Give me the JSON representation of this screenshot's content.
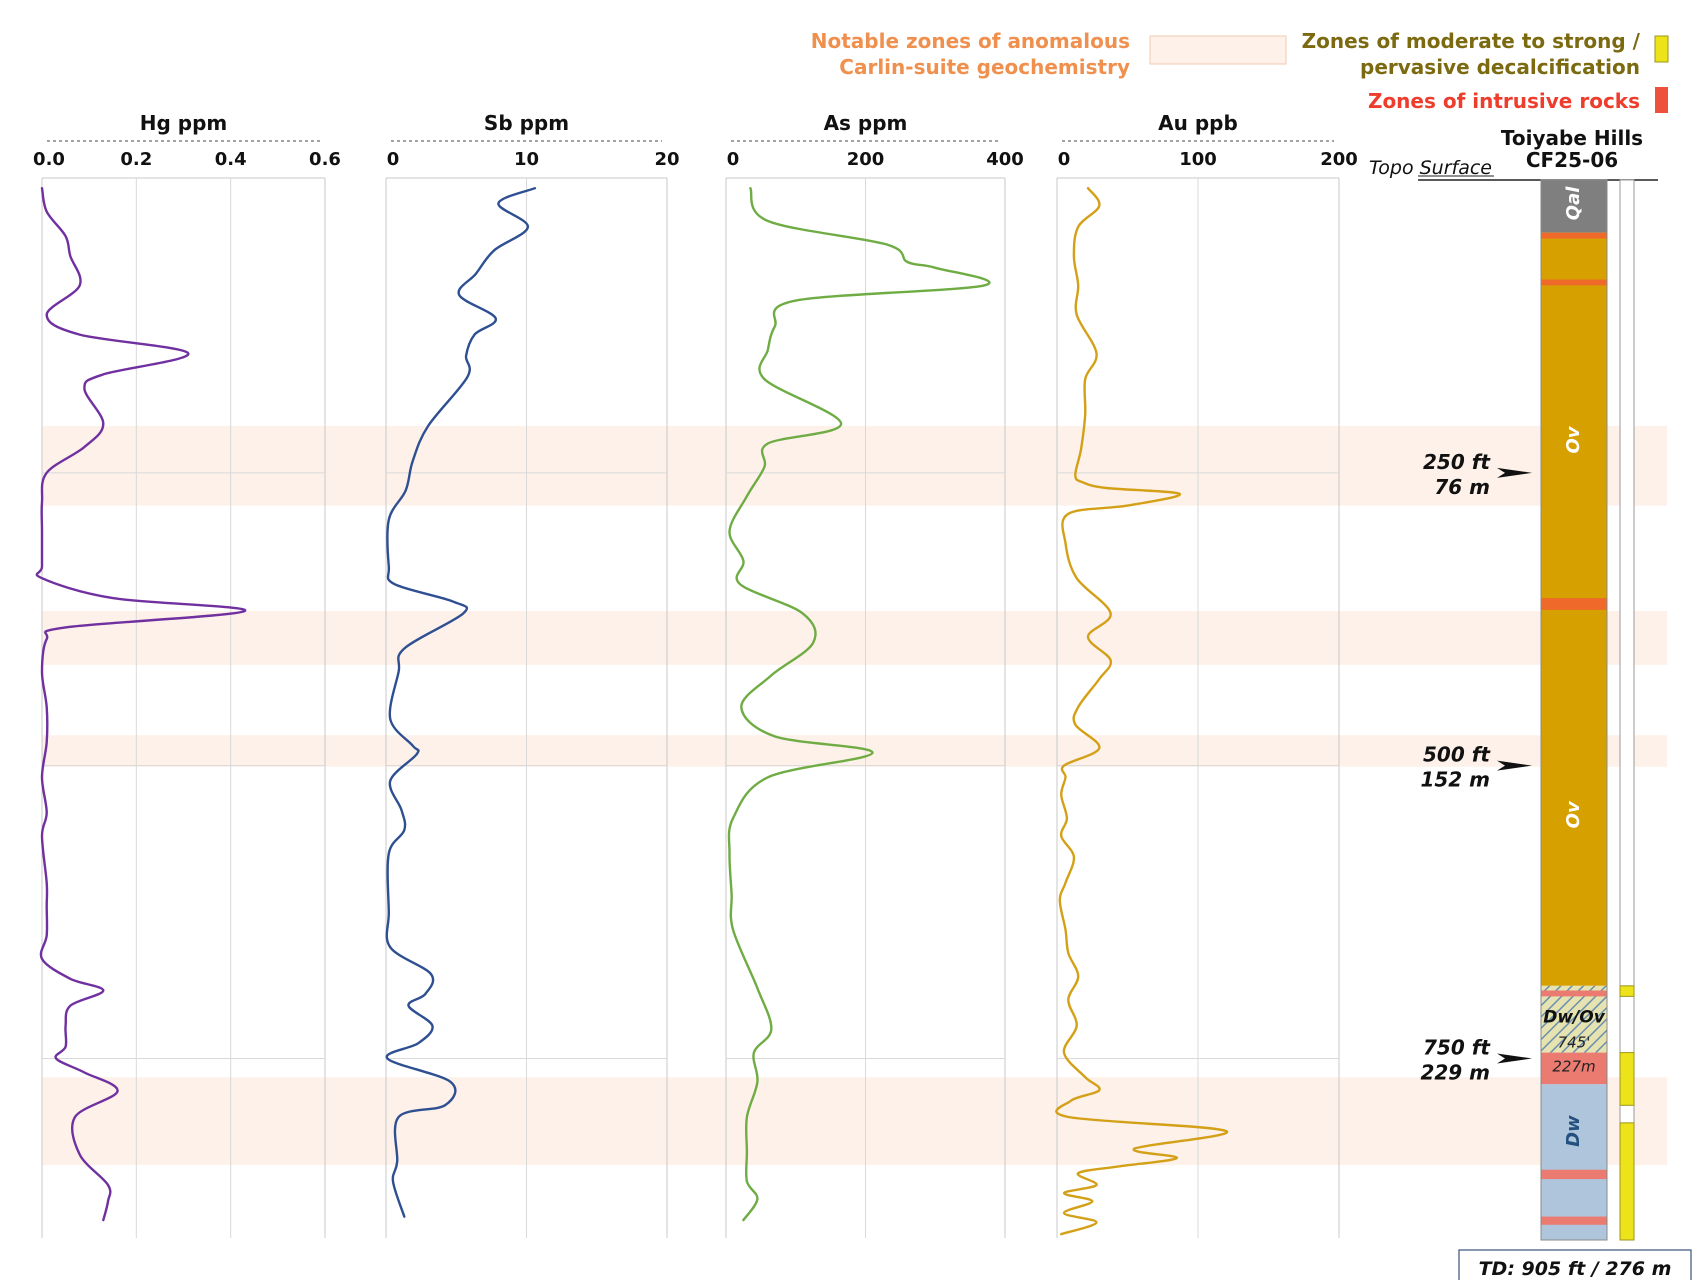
{
  "legend": {
    "anomalous_line1": "Notable zones of anomalous",
    "anomalous_line2": "Carlin-suite geochemistry",
    "anomalous_color": "#fdf1ea",
    "anomalous_text_color": "#f0904f",
    "decalc_line1": "Zones of moderate to strong /",
    "decalc_line2": "pervasive decalcification",
    "decalc_color": "#ece31a",
    "decalc_text_color": "#7b6a10",
    "intrusive_label": "Zones of intrusive rocks",
    "intrusive_color": "#ef4f3d",
    "intrusive_text_color": "#ee3c2d"
  },
  "column": {
    "title_line1": "Toiyabe Hills",
    "title_line2": "CF25-06",
    "topo_label": "Topo Surface",
    "td_label": "TD: 905 ft / 276 m",
    "contact_line1": "745'",
    "contact_line2": "227m",
    "units": [
      {
        "label": "Qal",
        "top_ft": 0,
        "bottom_ft": 45,
        "color": "#7f7f7f",
        "text_color": "#ffffff"
      },
      {
        "label": "Ov",
        "top_ft": 45,
        "bottom_ft": 688,
        "color": "#d6a100",
        "text_color": "#ffffff"
      },
      {
        "label": "Dw/Ov",
        "top_ft": 688,
        "bottom_ft": 745,
        "color": "#c7c79a",
        "text_color": "#111111"
      },
      {
        "label": "",
        "top_ft": 745,
        "bottom_ft": 772,
        "color": "#eb7a70",
        "text_color": "#111111"
      },
      {
        "label": "Dw",
        "top_ft": 772,
        "bottom_ft": 905,
        "color": "#aec5dc",
        "text_color": "#23507f"
      }
    ],
    "unit_label_positions_ft": [
      {
        "label": "Qal",
        "depth_ft": 20
      },
      {
        "label": "Ov",
        "depth_ft": 222
      },
      {
        "label": "Ov",
        "depth_ft": 542
      },
      {
        "label": "Dw/Ov",
        "depth_ft": 714
      },
      {
        "label": "Dw",
        "depth_ft": 812
      }
    ],
    "intrusive_bands_ft": [
      [
        45,
        50
      ],
      [
        85,
        90
      ],
      [
        357,
        367
      ],
      [
        692,
        697
      ],
      [
        845,
        853
      ],
      [
        885,
        892
      ]
    ],
    "decalc_intervals_ft": [
      [
        688,
        697
      ],
      [
        745,
        790
      ],
      [
        805,
        905
      ]
    ]
  },
  "depth_markers": [
    {
      "depth_ft": 250,
      "ft_label": "250 ft",
      "m_label": "76 m"
    },
    {
      "depth_ft": 500,
      "ft_label": "500 ft",
      "m_label": "152 m"
    },
    {
      "depth_ft": 750,
      "ft_label": "750 ft",
      "m_label": "229 m"
    }
  ],
  "chart_data": {
    "type": "line",
    "y_axis": {
      "quantity": "depth",
      "unit": "ft",
      "range": [
        0,
        905
      ],
      "gridlines": [
        250,
        500,
        750
      ]
    },
    "anomalous_zones_ft": [
      [
        210,
        278
      ],
      [
        368,
        414
      ],
      [
        474,
        501
      ],
      [
        766,
        841
      ]
    ],
    "panels": [
      {
        "title": "Hg ppm",
        "xlim": [
          0,
          0.6
        ],
        "ticks": [
          0,
          0.2,
          0.4,
          0.6
        ],
        "tick_labels": [
          "0.0",
          "0.2",
          "0.4",
          "0.6"
        ],
        "gridlines": [
          0.2,
          0.4
        ],
        "color": "#7030a0",
        "points": [
          [
            0.0,
            7
          ],
          [
            0.01,
            27
          ],
          [
            0.05,
            48
          ],
          [
            0.06,
            65
          ],
          [
            0.08,
            90
          ],
          [
            0.01,
            115
          ],
          [
            0.08,
            132
          ],
          [
            0.31,
            148
          ],
          [
            0.13,
            166
          ],
          [
            0.09,
            178
          ],
          [
            0.13,
            208
          ],
          [
            0.09,
            228
          ],
          [
            0.01,
            250
          ],
          [
            0.0,
            275
          ],
          [
            0.0,
            300
          ],
          [
            0.0,
            330
          ],
          [
            0.0,
            340
          ],
          [
            0.15,
            357
          ],
          [
            0.43,
            368
          ],
          [
            0.05,
            382
          ],
          [
            0.01,
            392
          ],
          [
            0.0,
            420
          ],
          [
            0.01,
            450
          ],
          [
            0.01,
            480
          ],
          [
            0.0,
            510
          ],
          [
            0.01,
            540
          ],
          [
            0.0,
            560
          ],
          [
            0.01,
            600
          ],
          [
            0.01,
            620
          ],
          [
            0.01,
            645
          ],
          [
            0.0,
            665
          ],
          [
            0.06,
            682
          ],
          [
            0.13,
            692
          ],
          [
            0.06,
            705
          ],
          [
            0.05,
            722
          ],
          [
            0.05,
            740
          ],
          [
            0.03,
            750
          ],
          [
            0.09,
            762
          ],
          [
            0.16,
            778
          ],
          [
            0.07,
            800
          ],
          [
            0.08,
            832
          ],
          [
            0.14,
            858
          ],
          [
            0.14,
            872
          ],
          [
            0.13,
            888
          ]
        ]
      },
      {
        "title": "Sb ppm",
        "xlim": [
          0,
          20
        ],
        "ticks": [
          0,
          10,
          20
        ],
        "tick_labels": [
          "0",
          "10",
          "20"
        ],
        "gridlines": [
          10
        ],
        "color": "#2e4f91",
        "points": [
          [
            10.6,
            7
          ],
          [
            8.0,
            20
          ],
          [
            10.1,
            40
          ],
          [
            7.7,
            60
          ],
          [
            6.4,
            80
          ],
          [
            5.2,
            98
          ],
          [
            7.8,
            118
          ],
          [
            6.3,
            132
          ],
          [
            5.7,
            150
          ],
          [
            5.8,
            168
          ],
          [
            3.0,
            210
          ],
          [
            1.9,
            240
          ],
          [
            1.4,
            265
          ],
          [
            0.2,
            290
          ],
          [
            0.2,
            330
          ],
          [
            0.6,
            345
          ],
          [
            4.8,
            360
          ],
          [
            5.5,
            370
          ],
          [
            1.3,
            400
          ],
          [
            0.9,
            420
          ],
          [
            0.3,
            460
          ],
          [
            1.9,
            483
          ],
          [
            2.2,
            490
          ],
          [
            0.3,
            513
          ],
          [
            1.1,
            538
          ],
          [
            1.3,
            555
          ],
          [
            0.2,
            575
          ],
          [
            0.2,
            625
          ],
          [
            0.3,
            655
          ],
          [
            3.2,
            678
          ],
          [
            2.8,
            695
          ],
          [
            1.6,
            705
          ],
          [
            3.3,
            722
          ],
          [
            2.3,
            737
          ],
          [
            0.1,
            750
          ],
          [
            4.6,
            770
          ],
          [
            4.2,
            790
          ],
          [
            0.9,
            800
          ],
          [
            0.8,
            838
          ],
          [
            0.5,
            855
          ],
          [
            1.3,
            885
          ]
        ]
      },
      {
        "title": "As ppm",
        "xlim": [
          0,
          400
        ],
        "ticks": [
          0,
          200,
          400
        ],
        "tick_labels": [
          "0",
          "200",
          "400"
        ],
        "gridlines": [
          200
        ],
        "color": "#6fac44",
        "points": [
          [
            35,
            7
          ],
          [
            60,
            35
          ],
          [
            230,
            55
          ],
          [
            260,
            70
          ],
          [
            300,
            75
          ],
          [
            370,
            90
          ],
          [
            100,
            103
          ],
          [
            70,
            125
          ],
          [
            60,
            145
          ],
          [
            55,
            170
          ],
          [
            165,
            208
          ],
          [
            60,
            225
          ],
          [
            55,
            245
          ],
          [
            30,
            270
          ],
          [
            5,
            300
          ],
          [
            25,
            325
          ],
          [
            20,
            345
          ],
          [
            110,
            370
          ],
          [
            125,
            395
          ],
          [
            65,
            423
          ],
          [
            22,
            450
          ],
          [
            70,
            475
          ],
          [
            210,
            489
          ],
          [
            60,
            510
          ],
          [
            10,
            545
          ],
          [
            5,
            575
          ],
          [
            8,
            610
          ],
          [
            10,
            640
          ],
          [
            45,
            690
          ],
          [
            65,
            725
          ],
          [
            40,
            745
          ],
          [
            45,
            770
          ],
          [
            30,
            800
          ],
          [
            30,
            830
          ],
          [
            30,
            855
          ],
          [
            45,
            870
          ],
          [
            25,
            888
          ]
        ]
      },
      {
        "title": "Au ppb",
        "xlim": [
          0,
          200
        ],
        "ticks": [
          0,
          100,
          200
        ],
        "tick_labels": [
          "0",
          "100",
          "200"
        ],
        "gridlines": [
          100
        ],
        "color": "#d4a017",
        "points": [
          [
            22,
            7
          ],
          [
            30,
            22
          ],
          [
            15,
            40
          ],
          [
            12,
            65
          ],
          [
            15,
            90
          ],
          [
            14,
            115
          ],
          [
            28,
            148
          ],
          [
            20,
            170
          ],
          [
            20,
            200
          ],
          [
            17,
            230
          ],
          [
            13,
            252
          ],
          [
            18,
            258
          ],
          [
            35,
            263
          ],
          [
            87,
            268
          ],
          [
            50,
            278
          ],
          [
            8,
            285
          ],
          [
            6,
            310
          ],
          [
            14,
            340
          ],
          [
            38,
            370
          ],
          [
            22,
            390
          ],
          [
            38,
            410
          ],
          [
            30,
            426
          ],
          [
            15,
            450
          ],
          [
            13,
            465
          ],
          [
            30,
            485
          ],
          [
            5,
            500
          ],
          [
            6,
            510
          ],
          [
            3,
            525
          ],
          [
            7,
            545
          ],
          [
            3,
            560
          ],
          [
            12,
            578
          ],
          [
            6,
            600
          ],
          [
            2,
            615
          ],
          [
            6,
            640
          ],
          [
            8,
            660
          ],
          [
            15,
            680
          ],
          [
            8,
            700
          ],
          [
            14,
            722
          ],
          [
            5,
            745
          ],
          [
            20,
            766
          ],
          [
            30,
            777
          ],
          [
            10,
            786
          ],
          [
            8,
            800
          ],
          [
            120,
            812
          ],
          [
            55,
            827
          ],
          [
            85,
            835
          ],
          [
            45,
            842
          ],
          [
            15,
            848
          ],
          [
            28,
            858
          ],
          [
            5,
            865
          ],
          [
            25,
            872
          ],
          [
            5,
            882
          ],
          [
            28,
            890
          ],
          [
            3,
            900
          ]
        ]
      }
    ]
  }
}
